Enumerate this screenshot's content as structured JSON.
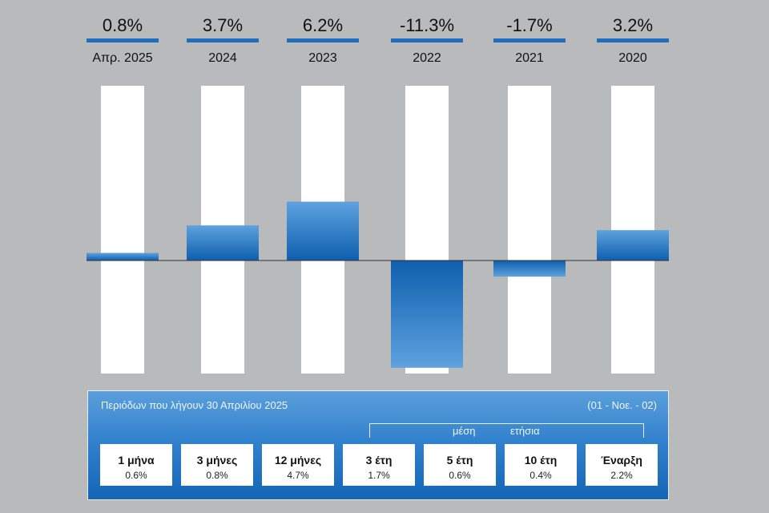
{
  "chart_data": {
    "type": "bar",
    "categories": [
      "Απρ. 2025",
      "2024",
      "2023",
      "2022",
      "2021",
      "2020"
    ],
    "values": [
      0.8,
      3.7,
      6.2,
      -11.3,
      -1.7,
      3.2
    ],
    "value_labels": [
      "0.8%",
      "3.7%",
      "6.2%",
      "-11.3%",
      "-1.7%",
      "3.2%"
    ],
    "ylim": [
      -12,
      8
    ],
    "grid": false,
    "colors": {
      "bar": "#2c7ccc",
      "bar_light": "#5ea2de",
      "bar_dark": "#0e5fae",
      "track": "#ffffff",
      "rule": "#1f6fbe"
    }
  },
  "panel": {
    "title": "Περιόδων που λήγουν 30 Απριλίου 2025",
    "reference": "(01 - Νοε. - 02)",
    "avg_label_1": "μέση",
    "avg_label_2": "ετήσια",
    "periods": [
      {
        "label": "1 μήνα",
        "value": "0.6%"
      },
      {
        "label": "3 μήνες",
        "value": "0.8%"
      },
      {
        "label": "12 μήνες",
        "value": "4.7%"
      },
      {
        "label": "3 έτη",
        "value": "1.7%"
      },
      {
        "label": "5 έτη",
        "value": "0.6%"
      },
      {
        "label": "10 έτη",
        "value": "0.4%"
      },
      {
        "label": "Έναρξη",
        "value": "2.2%"
      }
    ]
  }
}
